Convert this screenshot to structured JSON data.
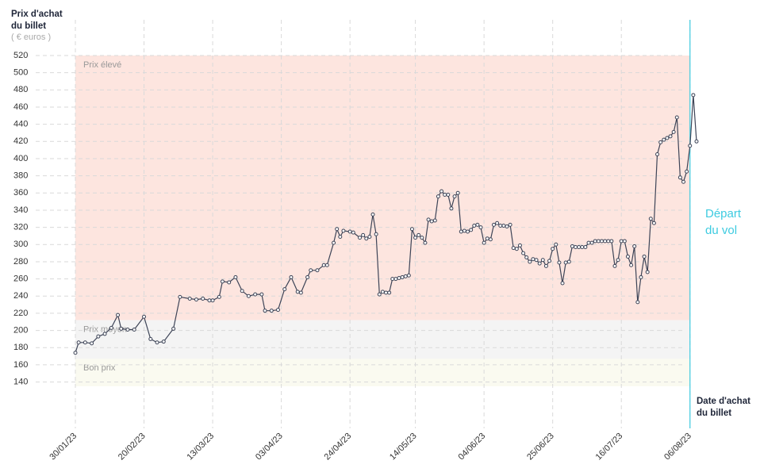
{
  "chart_data": {
    "type": "line",
    "y_label": [
      "Prix d'achat",
      "du billet"
    ],
    "y_unit": "( € euros )",
    "x_label": [
      "Date d'achat",
      "du billet"
    ],
    "annotation": [
      "Départ",
      "du vol"
    ],
    "annotation_color": "#3ecbe0",
    "annotation_x": "06/08/23",
    "color": "#3d4457",
    "grid": true,
    "bands": [
      {
        "label": "Prix élevé",
        "from": 212,
        "to": 520,
        "color": "#fde5df"
      },
      {
        "label": "Prix moyen",
        "from": 167,
        "to": 212,
        "color": "#f4f4f4"
      },
      {
        "label": "Bon prix",
        "from": 135,
        "to": 167,
        "color": "#fafaf0"
      }
    ],
    "ylim": [
      135,
      520
    ],
    "yticks": [
      140,
      160,
      180,
      200,
      220,
      240,
      260,
      280,
      300,
      320,
      340,
      360,
      380,
      400,
      420,
      440,
      460,
      480,
      500,
      520
    ],
    "xlim": [
      "30/01/23",
      "08/08/23"
    ],
    "xticks": [
      "30/01/23",
      "20/02/23",
      "13/03/23",
      "03/04/23",
      "24/04/23",
      "14/05/23",
      "04/06/23",
      "25/06/23",
      "16/07/23",
      "06/08/23"
    ],
    "x": [
      "30/01/23",
      "31/01/23",
      "02/02/23",
      "04/02/23",
      "06/02/23",
      "08/02/23",
      "10/02/23",
      "12/02/23",
      "13/02/23",
      "15/02/23",
      "17/02/23",
      "20/02/23",
      "22/02/23",
      "24/02/23",
      "26/02/23",
      "01/03/23",
      "03/03/23",
      "06/03/23",
      "08/03/23",
      "10/03/23",
      "12/03/23",
      "13/03/23",
      "15/03/23",
      "16/03/23",
      "18/03/23",
      "20/03/23",
      "22/03/23",
      "24/03/23",
      "26/03/23",
      "28/03/23",
      "29/03/23",
      "31/03/23",
      "02/04/23",
      "04/04/23",
      "06/04/23",
      "08/04/23",
      "09/04/23",
      "11/04/23",
      "12/04/23",
      "14/04/23",
      "16/04/23",
      "17/04/23",
      "19/04/23",
      "20/04/23",
      "21/04/23",
      "22/04/23",
      "24/04/23",
      "25/04/23",
      "27/04/23",
      "28/04/23",
      "29/04/23",
      "30/04/23",
      "01/05/23",
      "02/05/23",
      "03/05/23",
      "04/05/23",
      "05/05/23",
      "06/05/23",
      "07/05/23",
      "08/05/23",
      "09/05/23",
      "10/05/23",
      "11/05/23",
      "12/05/23",
      "13/05/23",
      "14/05/23",
      "15/05/23",
      "16/05/23",
      "17/05/23",
      "18/05/23",
      "19/05/23",
      "20/05/23",
      "21/05/23",
      "22/05/23",
      "23/05/23",
      "24/05/23",
      "25/05/23",
      "26/05/23",
      "27/05/23",
      "28/05/23",
      "29/05/23",
      "30/05/23",
      "31/05/23",
      "01/06/23",
      "02/06/23",
      "03/06/23",
      "04/06/23",
      "05/06/23",
      "06/06/23",
      "07/06/23",
      "08/06/23",
      "09/06/23",
      "10/06/23",
      "11/06/23",
      "12/06/23",
      "13/06/23",
      "14/06/23",
      "15/06/23",
      "16/06/23",
      "17/06/23",
      "18/06/23",
      "19/06/23",
      "20/06/23",
      "21/06/23",
      "22/06/23",
      "23/06/23",
      "24/06/23",
      "25/06/23",
      "26/06/23",
      "27/06/23",
      "28/06/23",
      "29/06/23",
      "30/06/23",
      "01/07/23",
      "02/07/23",
      "03/07/23",
      "04/07/23",
      "05/07/23",
      "06/07/23",
      "07/07/23",
      "08/07/23",
      "09/07/23",
      "10/07/23",
      "11/07/23",
      "12/07/23",
      "13/07/23",
      "14/07/23",
      "15/07/23",
      "16/07/23",
      "17/07/23",
      "18/07/23",
      "19/07/23",
      "20/07/23",
      "21/07/23",
      "22/07/23",
      "23/07/23",
      "24/07/23",
      "25/07/23",
      "26/07/23",
      "27/07/23",
      "28/07/23",
      "29/07/23",
      "30/07/23",
      "31/07/23",
      "01/08/23",
      "02/08/23",
      "03/08/23",
      "04/08/23",
      "05/08/23",
      "06/08/23",
      "07/08/23",
      "08/08/23"
    ],
    "values": [
      174,
      186,
      186,
      185,
      193,
      196,
      203,
      218,
      202,
      201,
      201,
      216,
      190,
      186,
      187,
      202,
      239,
      237,
      236,
      237,
      235,
      235,
      239,
      257,
      256,
      262,
      246,
      240,
      242,
      242,
      223,
      223,
      224,
      248,
      262,
      245,
      244,
      262,
      270,
      270,
      276,
      276,
      302,
      318,
      309,
      316,
      315,
      314,
      308,
      311,
      307,
      309,
      335,
      312,
      242,
      245,
      244,
      244,
      260,
      260,
      261,
      262,
      263,
      264,
      318,
      308,
      311,
      308,
      302,
      329,
      327,
      328,
      356,
      362,
      358,
      358,
      342,
      356,
      360,
      315,
      316,
      315,
      317,
      322,
      323,
      320,
      302,
      307,
      306,
      323,
      325,
      322,
      322,
      321,
      323,
      296,
      295,
      299,
      290,
      285,
      280,
      283,
      282,
      278,
      282,
      275,
      281,
      295,
      300,
      279,
      255,
      279,
      280,
      298,
      297,
      297,
      297,
      297,
      302,
      302,
      304,
      304,
      304,
      304,
      304,
      304,
      275,
      282,
      304,
      304,
      286,
      276,
      298,
      233,
      262,
      286,
      268,
      330,
      325,
      405,
      419,
      422,
      424,
      426,
      431,
      448,
      378,
      373,
      385,
      415,
      474,
      420
    ]
  }
}
